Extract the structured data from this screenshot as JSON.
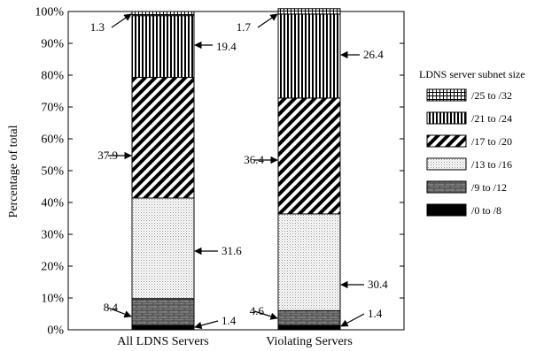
{
  "chart_data": {
    "type": "bar",
    "stacked": true,
    "title": "",
    "xlabel": "",
    "ylabel": "Percentage of total",
    "ylim": [
      0,
      100
    ],
    "yticks": [
      "0%",
      "10%",
      "20%",
      "30%",
      "40%",
      "50%",
      "60%",
      "70%",
      "80%",
      "90%",
      "100%"
    ],
    "categories": [
      "All LDNS Servers",
      "Violating Servers"
    ],
    "legend_title": "LDNS server subnet size",
    "legend_position": "right",
    "grid": false,
    "series": [
      {
        "name": "/0 to /8",
        "pattern": "solid-black",
        "values": [
          1.4,
          1.4
        ]
      },
      {
        "name": "/9 to /12",
        "pattern": "grey-bricks",
        "values": [
          8.4,
          4.6
        ]
      },
      {
        "name": "/13 to /16",
        "pattern": "dots",
        "values": [
          31.6,
          30.4
        ]
      },
      {
        "name": "/17 to /20",
        "pattern": "diagonal",
        "values": [
          37.9,
          36.4
        ]
      },
      {
        "name": "/21 to /24",
        "pattern": "vertical",
        "values": [
          19.4,
          26.4
        ]
      },
      {
        "name": "/25 to /32",
        "pattern": "crosshatch",
        "values": [
          1.3,
          1.7
        ]
      }
    ],
    "annotations": [
      {
        "text": "1.3",
        "bar": 0,
        "series": 5
      },
      {
        "text": "19.4",
        "bar": 0,
        "series": 4
      },
      {
        "text": "37.9",
        "bar": 0,
        "series": 3
      },
      {
        "text": "31.6",
        "bar": 0,
        "series": 2
      },
      {
        "text": "8.4",
        "bar": 0,
        "series": 1
      },
      {
        "text": "1.4",
        "bar": 0,
        "series": 0
      },
      {
        "text": "1.7",
        "bar": 1,
        "series": 5
      },
      {
        "text": "26.4",
        "bar": 1,
        "series": 4
      },
      {
        "text": "36.4",
        "bar": 1,
        "series": 3
      },
      {
        "text": "30.4",
        "bar": 1,
        "series": 2
      },
      {
        "text": "4.6",
        "bar": 1,
        "series": 1
      },
      {
        "text": "1.4",
        "bar": 1,
        "series": 0
      }
    ]
  }
}
